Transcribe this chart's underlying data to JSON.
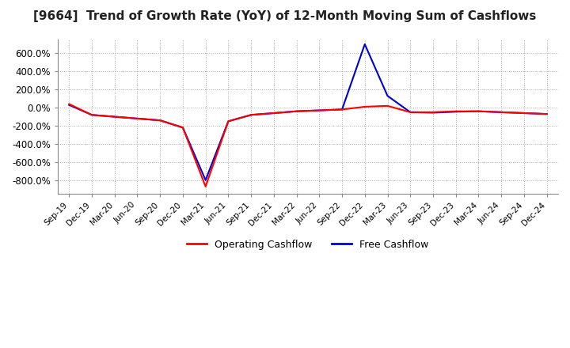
{
  "title": "[9664]  Trend of Growth Rate (YoY) of 12-Month Moving Sum of Cashflows",
  "title_fontsize": 11,
  "background_color": "#ffffff",
  "plot_bg_color": "#ffffff",
  "grid_color": "#aaaaaa",
  "ylim": [
    -950,
    750
  ],
  "yticks": [
    -800,
    -600,
    -400,
    -200,
    0,
    200,
    400,
    600
  ],
  "operating_color": "#ff0000",
  "free_color": "#0000cc",
  "x_labels": [
    "Sep-19",
    "Dec-19",
    "Mar-20",
    "Jun-20",
    "Sep-20",
    "Dec-20",
    "Mar-21",
    "Jun-21",
    "Sep-21",
    "Dec-21",
    "Mar-22",
    "Jun-22",
    "Sep-22",
    "Dec-22",
    "Mar-23",
    "Jun-23",
    "Sep-23",
    "Dec-23",
    "Mar-24",
    "Jun-24",
    "Sep-24",
    "Dec-24"
  ],
  "operating_cashflow": [
    40,
    -80,
    -100,
    -120,
    -140,
    -220,
    -870,
    -150,
    -80,
    -60,
    -40,
    -30,
    -20,
    10,
    20,
    -50,
    -50,
    -40,
    -40,
    -50,
    -60,
    -70
  ],
  "free_cashflow": [
    30,
    -80,
    -100,
    -120,
    -140,
    -220,
    -800,
    -150,
    -80,
    -60,
    -40,
    -30,
    -20,
    700,
    130,
    -50,
    -55,
    -45,
    -40,
    -50,
    -60,
    -70
  ]
}
